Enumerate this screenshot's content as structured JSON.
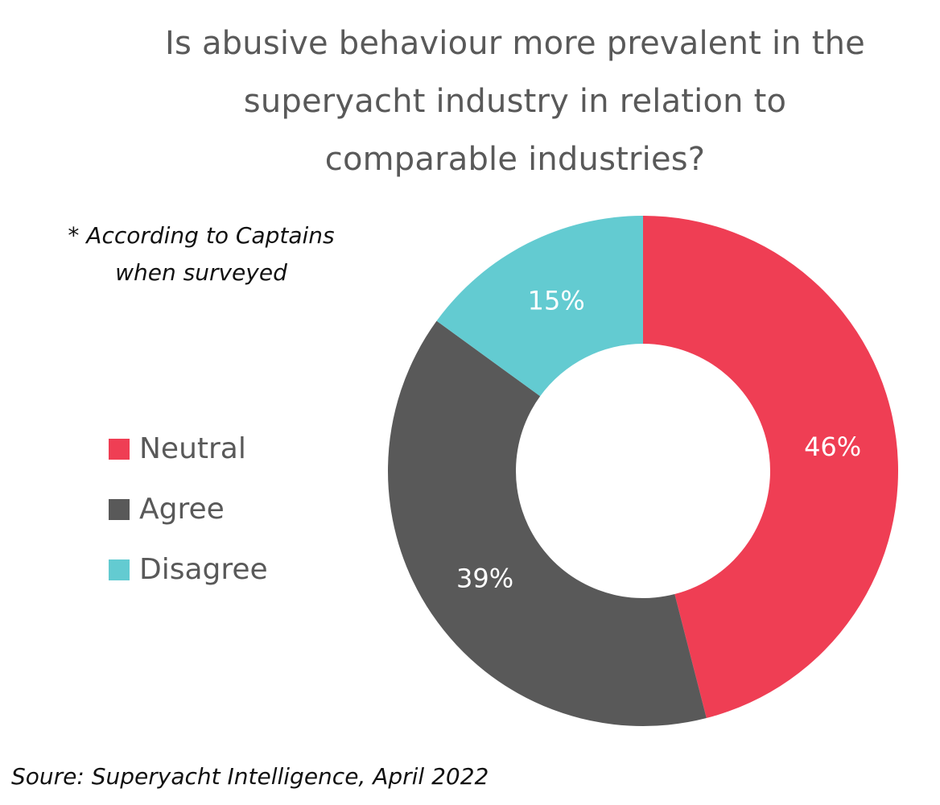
{
  "chart_data": {
    "type": "pie",
    "title_lines": [
      "Is abusive behaviour more prevalent in the",
      "superyacht industry in relation to",
      "comparable industries?"
    ],
    "annotation_lines": [
      "* According to Captains",
      "when surveyed"
    ],
    "source": "Soure: Superyacht Intelligence, April 2022",
    "legend_position": "left",
    "slices": [
      {
        "name": "Neutral",
        "value": 46,
        "label": "46%",
        "color": "#EF3E54"
      },
      {
        "name": "Agree",
        "value": 39,
        "label": "39%",
        "color": "#595959"
      },
      {
        "name": "Disagree",
        "value": 15,
        "label": "15%",
        "color": "#63CBD1"
      }
    ]
  }
}
